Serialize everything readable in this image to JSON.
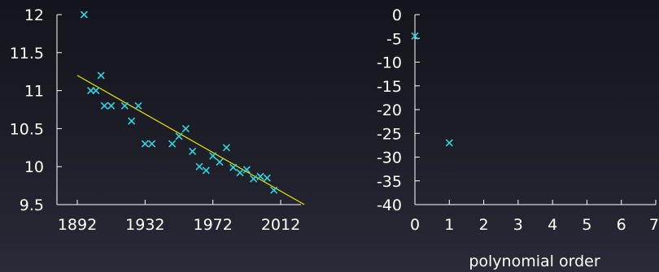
{
  "chart_data": [
    {
      "type": "scatter",
      "title": "",
      "xlabel": "",
      "ylabel": "",
      "xlim": [
        1880,
        2024
      ],
      "ylim": [
        9.5,
        12
      ],
      "x_ticks": [
        "1892",
        "1932",
        "1972",
        "2012"
      ],
      "y_ticks": [
        "12",
        "11.5",
        "11",
        "10.5",
        "10",
        "9.5"
      ],
      "points": [
        {
          "x": 1896,
          "y": 12.0
        },
        {
          "x": 1900,
          "y": 11.0
        },
        {
          "x": 1903,
          "y": 11.0
        },
        {
          "x": 1906,
          "y": 11.2
        },
        {
          "x": 1908,
          "y": 10.8
        },
        {
          "x": 1912,
          "y": 10.8
        },
        {
          "x": 1920,
          "y": 10.8
        },
        {
          "x": 1924,
          "y": 10.6
        },
        {
          "x": 1928,
          "y": 10.8
        },
        {
          "x": 1932,
          "y": 10.3
        },
        {
          "x": 1936,
          "y": 10.3
        },
        {
          "x": 1948,
          "y": 10.3
        },
        {
          "x": 1952,
          "y": 10.4
        },
        {
          "x": 1956,
          "y": 10.5
        },
        {
          "x": 1960,
          "y": 10.2
        },
        {
          "x": 1964,
          "y": 10.0
        },
        {
          "x": 1968,
          "y": 9.95
        },
        {
          "x": 1972,
          "y": 10.14
        },
        {
          "x": 1976,
          "y": 10.06
        },
        {
          "x": 1980,
          "y": 10.25
        },
        {
          "x": 1984,
          "y": 9.99
        },
        {
          "x": 1988,
          "y": 9.92
        },
        {
          "x": 1992,
          "y": 9.96
        },
        {
          "x": 1996,
          "y": 9.84
        },
        {
          "x": 2000,
          "y": 9.87
        },
        {
          "x": 2004,
          "y": 9.85
        },
        {
          "x": 2008,
          "y": 9.69
        }
      ],
      "fit_line": {
        "x": [
          1892,
          2026
        ],
        "y": [
          11.2,
          9.5
        ],
        "color": "#e8e800"
      },
      "marker_color": "#2fd6e0",
      "grid": false
    },
    {
      "type": "scatter",
      "title": "",
      "xlabel": "polynomial order",
      "ylabel": "",
      "xlim": [
        0,
        7
      ],
      "ylim": [
        -40,
        0
      ],
      "x_ticks": [
        "0",
        "1",
        "2",
        "3",
        "4",
        "5",
        "6",
        "7"
      ],
      "y_ticks": [
        "0",
        "-5",
        "-10",
        "-15",
        "-20",
        "-25",
        "-30",
        "-35",
        "-40"
      ],
      "points": [
        {
          "x": 0,
          "y": -4.5
        },
        {
          "x": 1,
          "y": -27
        }
      ],
      "marker_color": "#2fd6e0",
      "grid": false
    }
  ]
}
